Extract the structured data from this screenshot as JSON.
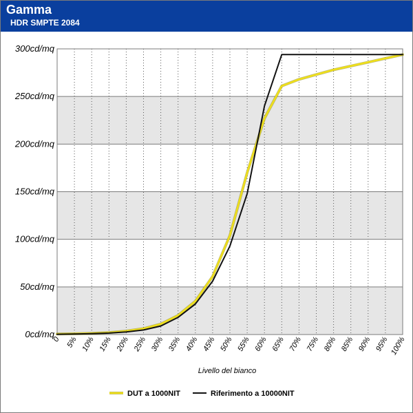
{
  "header": {
    "title": "Gamma",
    "subtitle": "HDR SMPTE 2084"
  },
  "colors": {
    "header_bg": "#0a3f9e",
    "band": "#e6e6e6",
    "dut": "#f0e018",
    "ref": "#111111"
  },
  "chart_data": {
    "type": "line",
    "title": "Gamma",
    "subtitle": "HDR SMPTE 2084",
    "xlabel": "Livello del bianco",
    "ylabel": "",
    "x": [
      0,
      5,
      10,
      15,
      20,
      25,
      30,
      35,
      40,
      45,
      50,
      55,
      60,
      65,
      70,
      75,
      80,
      85,
      90,
      95,
      100
    ],
    "x_tick_labels": [
      "0",
      "5%",
      "10%",
      "15%",
      "20%",
      "25%",
      "30%",
      "35%",
      "40%",
      "45%",
      "50%",
      "55%",
      "60%",
      "65%",
      "70%",
      "75%",
      "80%",
      "85%",
      "90%",
      "95%",
      "100%"
    ],
    "y_ticks": [
      0,
      50,
      100,
      150,
      200,
      250,
      300
    ],
    "y_tick_labels": [
      "0cd/mq",
      "50cd/mq",
      "100cd/mq",
      "150cd/mq",
      "200cd/mq",
      "250cd/mq",
      "300cd/mq"
    ],
    "ylim": [
      0,
      300
    ],
    "xlim": [
      0,
      100
    ],
    "grid": "horizontal bands with vertical dotted lines",
    "legend_position": "bottom",
    "series": [
      {
        "name": "DUT a 1000NIT",
        "color": "#f0e018",
        "values": [
          0.5,
          0.8,
          1.3,
          2.1,
          3.6,
          6.2,
          11,
          20,
          35,
          61,
          104,
          170,
          227,
          261,
          268,
          273,
          278,
          282,
          286,
          290,
          294
        ]
      },
      {
        "name": "Riferimento a 10000NIT",
        "color": "#111111",
        "values": [
          0.3,
          0.5,
          0.9,
          1.5,
          2.7,
          4.8,
          9,
          18,
          32,
          56,
          93,
          148,
          240,
          294,
          294,
          294,
          294,
          294,
          294,
          294,
          294
        ]
      }
    ]
  }
}
